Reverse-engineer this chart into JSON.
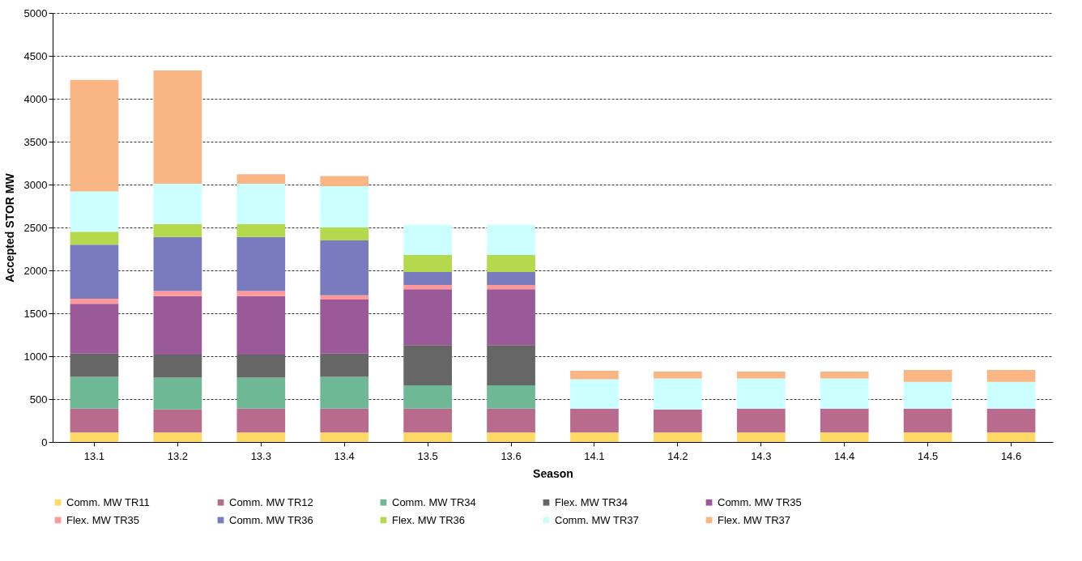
{
  "chart_data": {
    "type": "bar",
    "stacked": true,
    "xlabel": "Season",
    "ylabel": "Accepted STOR MW",
    "categories": [
      "13.1",
      "13.2",
      "13.3",
      "13.4",
      "13.5",
      "13.6",
      "14.1",
      "14.2",
      "14.3",
      "14.4",
      "14.5",
      "14.6"
    ],
    "ylim": [
      0,
      5000
    ],
    "yticks": [
      0,
      500,
      1000,
      1500,
      2000,
      2500,
      3000,
      3500,
      4000,
      4500,
      5000
    ],
    "grid": "y",
    "legend": "bottom",
    "series": [
      {
        "name": "Comm. MW TR11",
        "color": "#ffd966",
        "values": [
          110,
          110,
          110,
          110,
          110,
          110,
          110,
          110,
          110,
          110,
          110,
          110
        ]
      },
      {
        "name": "Comm. MW TR12",
        "color": "#b86b8c",
        "values": [
          280,
          270,
          280,
          280,
          280,
          280,
          280,
          270,
          280,
          280,
          280,
          280
        ]
      },
      {
        "name": "Comm. MW TR34",
        "color": "#6fb896",
        "values": [
          370,
          370,
          360,
          370,
          270,
          270,
          null,
          null,
          null,
          null,
          null,
          null
        ]
      },
      {
        "name": "Flex. MW TR34",
        "color": "#666666",
        "values": [
          270,
          270,
          270,
          270,
          470,
          470,
          null,
          null,
          null,
          null,
          null,
          null
        ]
      },
      {
        "name": "Comm. MW TR35",
        "color": "#9a5a99",
        "values": [
          580,
          680,
          680,
          630,
          650,
          650,
          null,
          null,
          null,
          null,
          null,
          null
        ]
      },
      {
        "name": "Flex. MW TR35",
        "color": "#ff9999",
        "values": [
          60,
          60,
          60,
          50,
          50,
          50,
          null,
          null,
          null,
          null,
          null,
          null
        ]
      },
      {
        "name": "Comm. MW TR36",
        "color": "#7a7abf",
        "values": [
          630,
          630,
          630,
          640,
          150,
          150,
          null,
          null,
          null,
          null,
          null,
          null
        ]
      },
      {
        "name": "Flex. MW TR36",
        "color": "#b5d94c",
        "values": [
          150,
          150,
          150,
          150,
          200,
          200,
          null,
          null,
          null,
          null,
          null,
          null
        ]
      },
      {
        "name": "Comm. MW TR37",
        "color": "#ccffff",
        "values": [
          470,
          470,
          470,
          480,
          350,
          350,
          340,
          360,
          350,
          350,
          310,
          310
        ]
      },
      {
        "name": "Flex. MW TR37",
        "color": "#fab585",
        "values": [
          1300,
          1320,
          110,
          120,
          null,
          null,
          100,
          80,
          80,
          80,
          140,
          140
        ]
      }
    ]
  }
}
